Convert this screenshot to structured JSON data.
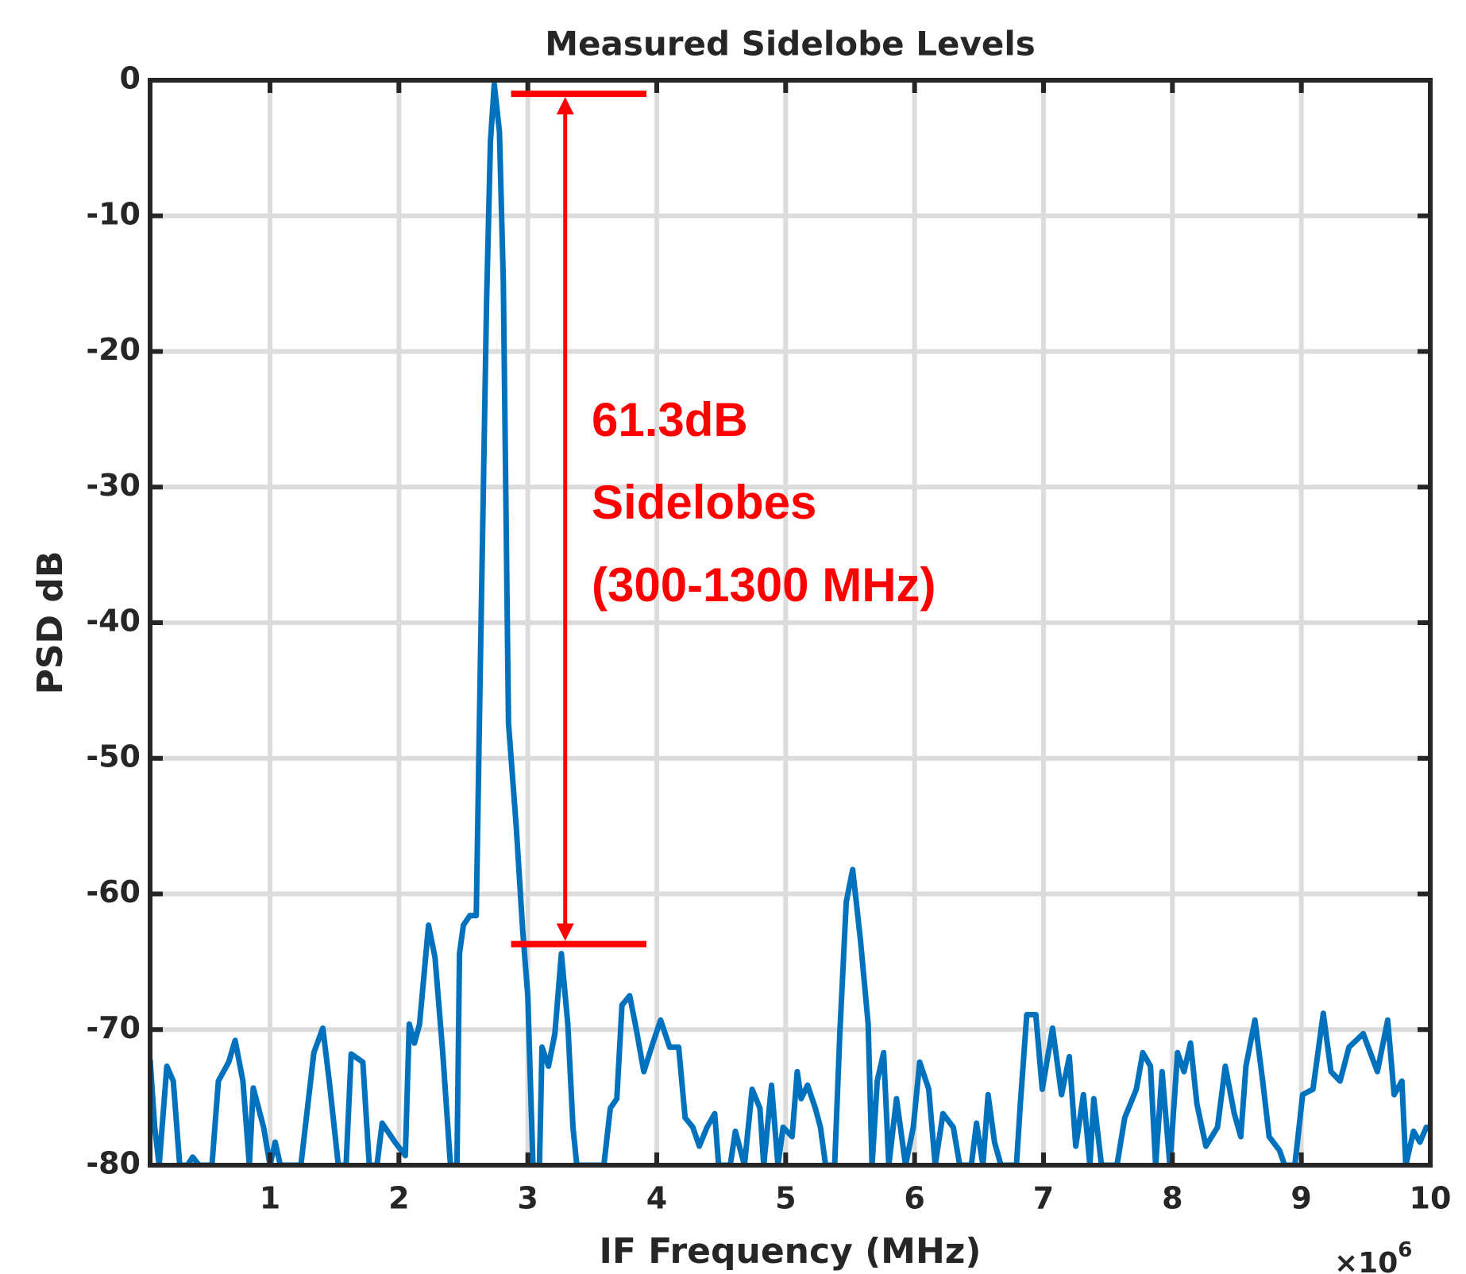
{
  "chart_data": {
    "type": "line",
    "title": "Measured Sidelobe Levels",
    "xlabel": "IF Frequency (MHz)",
    "ylabel": "PSD dB",
    "x_multiplier": "×10",
    "x_exponent": "6",
    "xlim": [
      0.07,
      10
    ],
    "ylim": [
      -80,
      0
    ],
    "xticks": [
      1,
      2,
      3,
      4,
      5,
      6,
      7,
      8,
      9,
      10
    ],
    "yticks": [
      0,
      -10,
      -20,
      -30,
      -40,
      -50,
      -60,
      -70,
      -80
    ],
    "grid": true,
    "series": [
      {
        "name": "PSD",
        "color": "#0072bd",
        "x": [
          0.07,
          0.106,
          0.14,
          0.2,
          0.25,
          0.3,
          0.36,
          0.4,
          0.45,
          0.55,
          0.6,
          0.68,
          0.73,
          0.79,
          0.84,
          0.87,
          0.95,
          1.0,
          1.04,
          1.08,
          1.24,
          1.34,
          1.41,
          1.46,
          1.53,
          1.59,
          1.63,
          1.72,
          1.77,
          1.83,
          1.87,
          1.97,
          2.05,
          2.08,
          2.12,
          2.16,
          2.23,
          2.28,
          2.34,
          2.4,
          2.45,
          2.47,
          2.5,
          2.55,
          2.6,
          2.63,
          2.68,
          2.71,
          2.74,
          2.78,
          2.81,
          2.85,
          2.91,
          2.96,
          3.0,
          3.04,
          3.09,
          3.11,
          3.16,
          3.21,
          3.26,
          3.31,
          3.35,
          3.38,
          3.59,
          3.64,
          3.69,
          3.73,
          3.79,
          3.84,
          3.9,
          3.97,
          4.03,
          4.1,
          4.17,
          4.22,
          4.28,
          4.33,
          4.39,
          4.45,
          4.48,
          4.57,
          4.61,
          4.68,
          4.74,
          4.8,
          4.83,
          4.89,
          4.94,
          4.98,
          5.05,
          5.09,
          5.12,
          5.17,
          5.23,
          5.27,
          5.31,
          5.38,
          5.42,
          5.47,
          5.52,
          5.58,
          5.64,
          5.67,
          5.71,
          5.76,
          5.8,
          5.86,
          5.93,
          5.99,
          6.04,
          6.11,
          6.16,
          6.22,
          6.3,
          6.35,
          6.44,
          6.48,
          6.53,
          6.57,
          6.62,
          6.67,
          6.79,
          6.82,
          6.87,
          6.94,
          6.99,
          7.07,
          7.14,
          7.2,
          7.25,
          7.31,
          7.36,
          7.39,
          7.45,
          7.57,
          7.63,
          7.72,
          7.77,
          7.83,
          7.87,
          7.92,
          7.98,
          8.04,
          8.09,
          8.14,
          8.19,
          8.26,
          8.35,
          8.41,
          8.48,
          8.53,
          8.57,
          8.64,
          8.7,
          8.75,
          8.83,
          8.87,
          8.95,
          9.01,
          9.09,
          9.17,
          9.23,
          9.3,
          9.37,
          9.48,
          9.59,
          9.67,
          9.72,
          9.78,
          9.81,
          9.87,
          9.92,
          9.97,
          10
        ],
        "values": [
          -72.2,
          -77.2,
          -80,
          -72.7,
          -73.8,
          -80,
          -80,
          -79.4,
          -80,
          -80,
          -73.8,
          -72.4,
          -70.8,
          -73.8,
          -80,
          -74.3,
          -77.2,
          -80,
          -78.3,
          -80,
          -80,
          -71.7,
          -69.9,
          -73.8,
          -80,
          -80,
          -71.8,
          -72.4,
          -80,
          -80,
          -76.9,
          -78.3,
          -79.3,
          -69.6,
          -71,
          -69.6,
          -62.3,
          -64.7,
          -71.7,
          -80,
          -80,
          -64.4,
          -62.3,
          -61.6,
          -61.6,
          -44,
          -16.3,
          -4.5,
          -0.3,
          -3.8,
          -14.9,
          -47.4,
          -55,
          -62.7,
          -67.5,
          -80,
          -80,
          -71.3,
          -72.7,
          -70.3,
          -64.4,
          -69.6,
          -77.2,
          -80,
          -80,
          -75.8,
          -75.1,
          -68.2,
          -67.5,
          -69.9,
          -73.1,
          -71,
          -69.3,
          -71.3,
          -71.3,
          -76.5,
          -77.2,
          -78.6,
          -77.2,
          -76.2,
          -80,
          -80,
          -77.5,
          -80,
          -74.4,
          -75.8,
          -80,
          -74.1,
          -80,
          -77.2,
          -77.9,
          -73.1,
          -75.1,
          -74.1,
          -75.8,
          -77.2,
          -80,
          -80,
          -70.3,
          -60.6,
          -58.2,
          -63.4,
          -69.6,
          -80,
          -73.8,
          -71.7,
          -80,
          -75.1,
          -80,
          -77.2,
          -72.4,
          -74.4,
          -80,
          -76.2,
          -77.2,
          -80,
          -80,
          -76.9,
          -80,
          -74.8,
          -78.3,
          -80,
          -80,
          -75.5,
          -68.9,
          -68.9,
          -74.4,
          -69.9,
          -74.8,
          -72,
          -78.6,
          -74.8,
          -80,
          -75.1,
          -80,
          -80,
          -76.5,
          -74.4,
          -71.7,
          -72.7,
          -80,
          -73.1,
          -80,
          -71.7,
          -73.1,
          -71,
          -75.5,
          -78.6,
          -77.2,
          -72.7,
          -76.2,
          -77.9,
          -72.7,
          -69.3,
          -73.8,
          -77.9,
          -78.9,
          -80,
          -80,
          -74.8,
          -74.4,
          -68.8,
          -73.1,
          -73.8,
          -71.3,
          -70.3,
          -73.1,
          -69.3,
          -74.8,
          -73.8,
          -80,
          -77.5,
          -78.3,
          -77.2,
          -77.2
        ]
      }
    ],
    "annotation": {
      "color": "#ff0000",
      "lines": [
        "61.3dB",
        "Sidelobes",
        "(300-1300 MHz)"
      ],
      "arrow_x": 3.29,
      "bar_x": [
        2.87,
        3.92
      ],
      "top": -1,
      "bottom": -63.7
    }
  }
}
